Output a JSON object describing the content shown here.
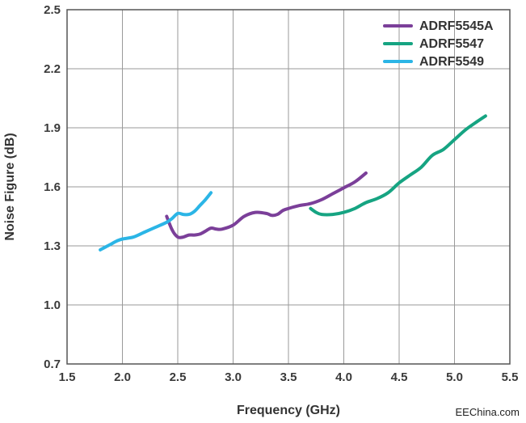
{
  "chart_data": {
    "type": "line",
    "title": "",
    "xlabel": "Frequency (GHz)",
    "ylabel": "Noise Figure (dB)",
    "xlim": [
      1.5,
      5.5
    ],
    "ylim": [
      0.7,
      2.5
    ],
    "xticks": [
      1.5,
      2.0,
      2.5,
      3.0,
      3.5,
      4.0,
      4.5,
      5.0,
      5.5
    ],
    "xtick_labels": [
      "1.5",
      "2.0",
      "2.5",
      "3.0",
      "3.5",
      "4.0",
      "4.5",
      "5.0",
      "5.5"
    ],
    "yticks": [
      0.7,
      1.0,
      1.3,
      1.6,
      1.9,
      2.2,
      2.5
    ],
    "ytick_labels": [
      "0.7",
      "1.0",
      "1.3",
      "1.6",
      "1.9",
      "2.2",
      "2.5"
    ],
    "grid": true,
    "legend_position": "top-right",
    "series": [
      {
        "name": "ADRF5545A",
        "color": "#7b3f99",
        "x": [
          2.4,
          2.45,
          2.5,
          2.55,
          2.6,
          2.65,
          2.7,
          2.75,
          2.8,
          2.85,
          2.9,
          3.0,
          3.1,
          3.2,
          3.3,
          3.35,
          3.4,
          3.45,
          3.5,
          3.6,
          3.7,
          3.8,
          3.9,
          4.0,
          4.1,
          4.2
        ],
        "y": [
          1.45,
          1.38,
          1.345,
          1.345,
          1.355,
          1.355,
          1.36,
          1.375,
          1.39,
          1.385,
          1.385,
          1.405,
          1.45,
          1.47,
          1.465,
          1.455,
          1.46,
          1.48,
          1.49,
          1.505,
          1.515,
          1.535,
          1.565,
          1.595,
          1.625,
          1.67
        ]
      },
      {
        "name": "ADRF5547",
        "color": "#16a482",
        "x": [
          3.7,
          3.75,
          3.8,
          3.9,
          4.0,
          4.1,
          4.2,
          4.3,
          4.4,
          4.5,
          4.6,
          4.7,
          4.8,
          4.9,
          5.0,
          5.1,
          5.2,
          5.28
        ],
        "y": [
          1.49,
          1.47,
          1.46,
          1.46,
          1.47,
          1.49,
          1.52,
          1.54,
          1.57,
          1.62,
          1.66,
          1.7,
          1.76,
          1.79,
          1.84,
          1.89,
          1.93,
          1.96
        ]
      },
      {
        "name": "ADRF5549",
        "color": "#2bb5e6",
        "x": [
          1.8,
          1.85,
          1.9,
          1.95,
          2.0,
          2.1,
          2.2,
          2.3,
          2.4,
          2.45,
          2.5,
          2.55,
          2.6,
          2.65,
          2.7,
          2.75,
          2.8
        ],
        "y": [
          1.28,
          1.295,
          1.31,
          1.325,
          1.335,
          1.345,
          1.37,
          1.395,
          1.42,
          1.44,
          1.465,
          1.46,
          1.46,
          1.475,
          1.505,
          1.535,
          1.57
        ]
      }
    ]
  },
  "watermark": "EEChina.com"
}
